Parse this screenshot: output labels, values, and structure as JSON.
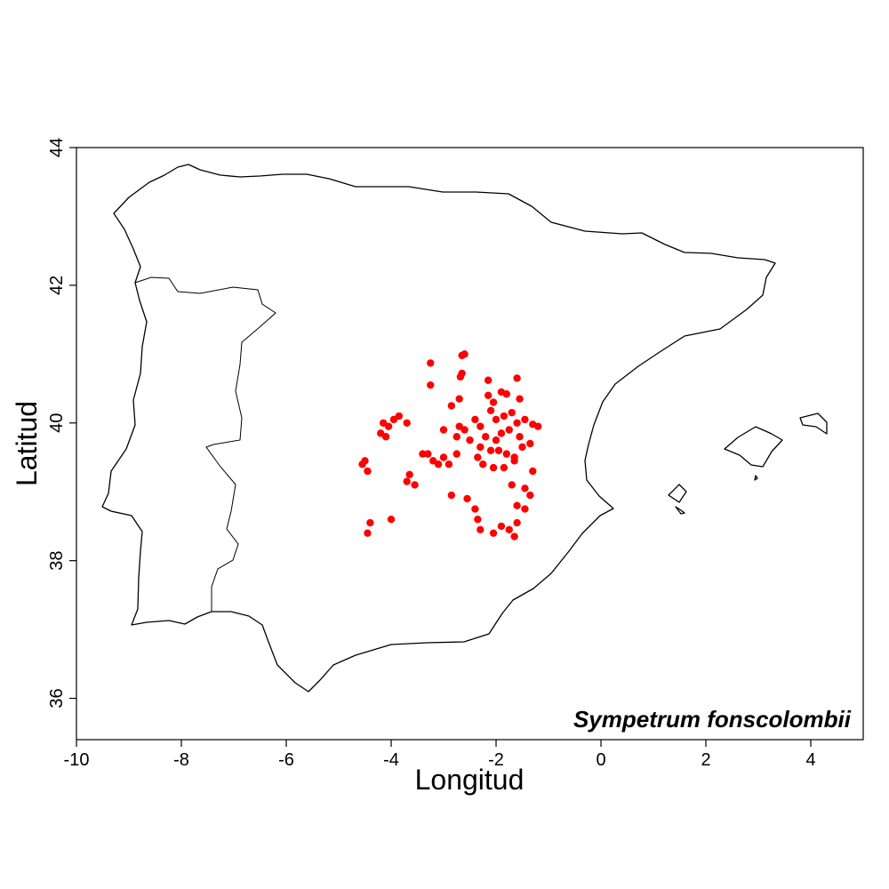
{
  "chart_data": {
    "type": "scatter",
    "title": "",
    "species_label": "Sympetrum fonscolombii",
    "xlabel": "Longitud",
    "ylabel": "Latitud",
    "xlim": [
      -10,
      5
    ],
    "ylim": [
      35.4,
      44
    ],
    "x_ticks": [
      -10,
      -8,
      -6,
      -4,
      -2,
      0,
      2,
      4
    ],
    "x_tick_labels": [
      "-10",
      "-8",
      "-6",
      "-4",
      "-2",
      "0",
      "2",
      "4"
    ],
    "y_ticks": [
      36,
      38,
      40,
      42,
      44
    ],
    "y_tick_labels": [
      "36",
      "38",
      "40",
      "42",
      "44"
    ],
    "grid": false,
    "marker_color": "#ff0000",
    "outline_color": "#000000",
    "basemap": "Iberian Peninsula and Balearic Islands coastline",
    "series": [
      {
        "points": [
          [
            -2.6,
            41.0
          ],
          [
            -2.65,
            40.98
          ],
          [
            -3.25,
            40.87
          ],
          [
            -2.65,
            40.72
          ],
          [
            -2.68,
            40.67
          ],
          [
            -1.6,
            40.65
          ],
          [
            -2.15,
            40.62
          ],
          [
            -3.25,
            40.55
          ],
          [
            -2.7,
            40.35
          ],
          [
            -2.15,
            40.4
          ],
          [
            -1.9,
            40.45
          ],
          [
            -1.8,
            40.42
          ],
          [
            -2.05,
            40.3
          ],
          [
            -2.1,
            40.18
          ],
          [
            -2.85,
            40.25
          ],
          [
            -2.0,
            40.05
          ],
          [
            -1.85,
            40.1
          ],
          [
            -1.7,
            40.15
          ],
          [
            -1.6,
            40.0
          ],
          [
            -1.45,
            40.05
          ],
          [
            -1.3,
            39.98
          ],
          [
            -1.2,
            39.95
          ],
          [
            -2.4,
            40.05
          ],
          [
            -2.3,
            39.95
          ],
          [
            -2.7,
            39.95
          ],
          [
            -2.6,
            39.9
          ],
          [
            -2.75,
            39.8
          ],
          [
            -3.0,
            39.9
          ],
          [
            -3.85,
            40.1
          ],
          [
            -3.95,
            40.05
          ],
          [
            -4.15,
            40.0
          ],
          [
            -4.05,
            39.95
          ],
          [
            -4.2,
            39.85
          ],
          [
            -4.1,
            39.8
          ],
          [
            -3.7,
            40.0
          ],
          [
            -2.2,
            39.8
          ],
          [
            -2.0,
            39.75
          ],
          [
            -1.9,
            39.85
          ],
          [
            -1.75,
            39.9
          ],
          [
            -1.55,
            39.8
          ],
          [
            -1.35,
            39.7
          ],
          [
            -1.5,
            39.65
          ],
          [
            -2.3,
            39.65
          ],
          [
            -2.1,
            39.6
          ],
          [
            -1.95,
            39.6
          ],
          [
            -1.8,
            39.55
          ],
          [
            -1.65,
            39.5
          ],
          [
            -2.5,
            39.75
          ],
          [
            -2.35,
            39.5
          ],
          [
            -2.25,
            39.4
          ],
          [
            -2.05,
            39.35
          ],
          [
            -1.85,
            39.35
          ],
          [
            -1.65,
            39.45
          ],
          [
            -1.3,
            39.3
          ],
          [
            -2.75,
            39.55
          ],
          [
            -3.3,
            39.55
          ],
          [
            -3.4,
            39.55
          ],
          [
            -3.2,
            39.45
          ],
          [
            -3.0,
            39.5
          ],
          [
            -2.9,
            39.4
          ],
          [
            -3.1,
            39.4
          ],
          [
            -4.5,
            39.45
          ],
          [
            -4.55,
            39.4
          ],
          [
            -4.45,
            39.3
          ],
          [
            -3.65,
            39.25
          ],
          [
            -3.7,
            39.15
          ],
          [
            -3.55,
            39.1
          ],
          [
            -1.7,
            39.1
          ],
          [
            -1.45,
            39.05
          ],
          [
            -1.35,
            38.95
          ],
          [
            -2.85,
            38.95
          ],
          [
            -2.55,
            38.9
          ],
          [
            -2.4,
            38.75
          ],
          [
            -1.6,
            38.8
          ],
          [
            -1.45,
            38.75
          ],
          [
            -2.35,
            38.6
          ],
          [
            -2.3,
            38.45
          ],
          [
            -1.9,
            38.5
          ],
          [
            -1.75,
            38.45
          ],
          [
            -1.65,
            38.35
          ],
          [
            -2.05,
            38.4
          ],
          [
            -4.4,
            38.55
          ],
          [
            -4.45,
            38.4
          ],
          [
            -4.0,
            38.6
          ],
          [
            -1.6,
            38.55
          ],
          [
            -1.55,
            40.35
          ]
        ]
      }
    ]
  }
}
